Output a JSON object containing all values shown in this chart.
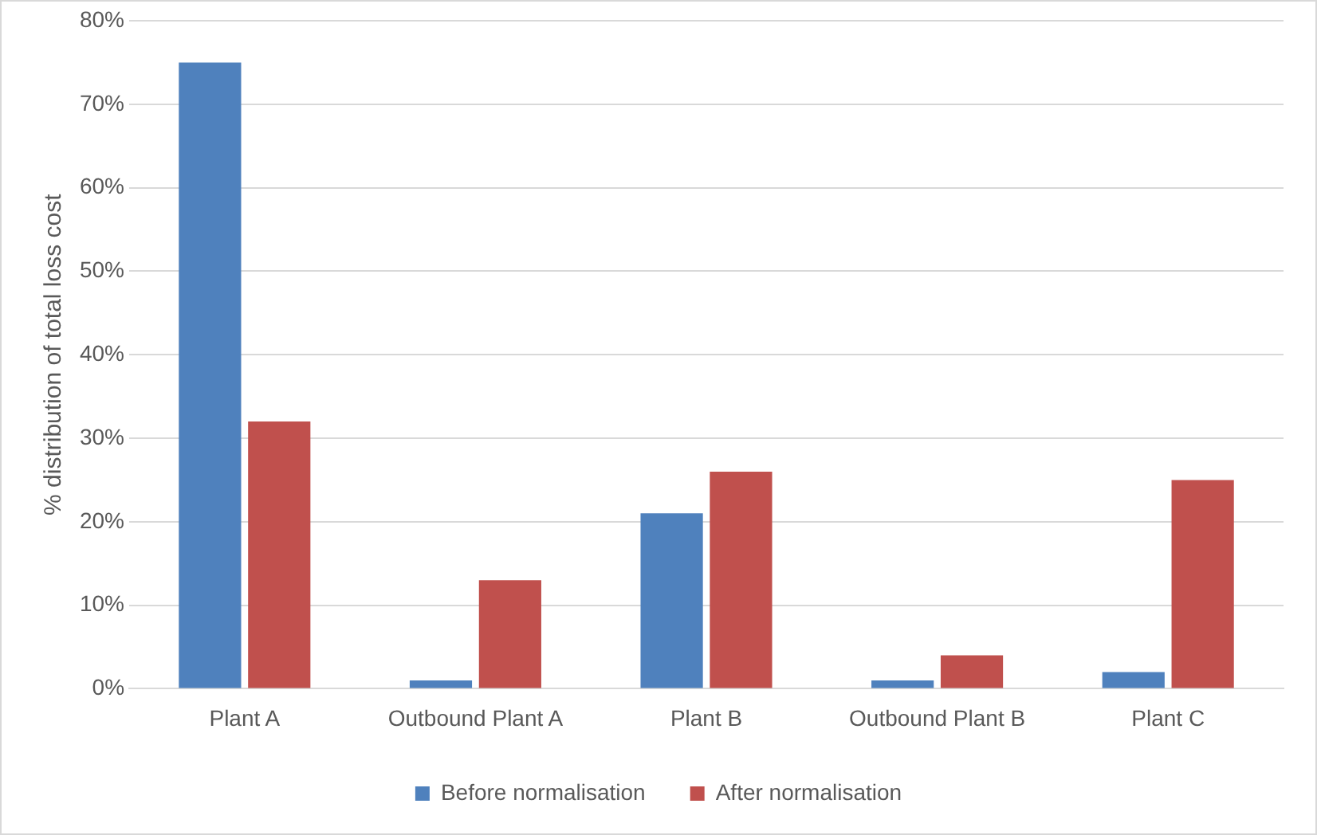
{
  "chart_data": {
    "type": "bar",
    "ylabel": "% distribution of total loss cost",
    "categories": [
      "Plant A",
      "Outbound Plant A",
      "Plant B",
      "Outbound Plant B",
      "Plant C"
    ],
    "series": [
      {
        "name": "Before normalisation",
        "color": "#4f81bd",
        "values": [
          75,
          1,
          21,
          1,
          2
        ]
      },
      {
        "name": "After normalisation",
        "color": "#c0504d",
        "values": [
          32,
          13,
          26,
          4,
          25
        ]
      }
    ],
    "ylim": [
      0,
      80
    ],
    "yticks": [
      {
        "value": 0,
        "label": "0%"
      },
      {
        "value": 10,
        "label": "10%"
      },
      {
        "value": 20,
        "label": "20%"
      },
      {
        "value": 30,
        "label": "30%"
      },
      {
        "value": 40,
        "label": "40%"
      },
      {
        "value": 50,
        "label": "50%"
      },
      {
        "value": 60,
        "label": "60%"
      },
      {
        "value": 70,
        "label": "70%"
      },
      {
        "value": 80,
        "label": "80%"
      }
    ],
    "grid": "y",
    "legend": "bottom"
  }
}
